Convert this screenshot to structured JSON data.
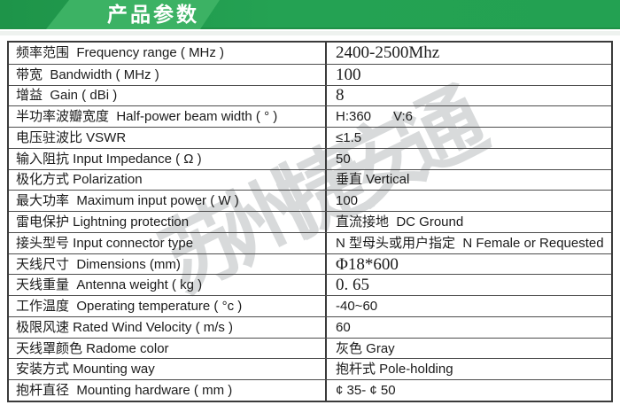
{
  "header": {
    "title": "产品参数"
  },
  "watermark": {
    "text": "苏州捷安通"
  },
  "colors": {
    "header_green": "#23a152",
    "header_green_dark": "#1e9449",
    "header_accent_green": "#3cb264",
    "table_border": "#3b3b3b",
    "watermark_gray": "#b9bdbf",
    "text": "#1b1b1b"
  },
  "table": {
    "rows": [
      {
        "label": "频率范围  Frequency range ( MHz )",
        "value": "2400-2500Mhz",
        "value_class": "serif"
      },
      {
        "label": "带宽  Bandwidth ( MHz )",
        "value": "100",
        "value_class": "serif"
      },
      {
        "label": "增益  Gain ( dBi )",
        "value": "8",
        "value_class": "serif"
      },
      {
        "label": "半功率波瓣宽度  Half-power beam width ( ° )",
        "value": "H:360      V:6",
        "value_class": ""
      },
      {
        "label": "电压驻波比 VSWR",
        "value": "≤1.5",
        "value_class": ""
      },
      {
        "label": "输入阻抗 Input Impedance ( Ω )",
        "value": "50",
        "value_class": ""
      },
      {
        "label": "极化方式 Polarization",
        "value": "垂直 Vertical",
        "value_class": ""
      },
      {
        "label": "最大功率  Maximum input power ( W )",
        "value": "100",
        "value_class": ""
      },
      {
        "label": "雷电保护 Lightning protection",
        "value": "直流接地  DC Ground",
        "value_class": ""
      },
      {
        "label": "接头型号 Input connector type",
        "value": "N 型母头或用户指定  N Female or Requested",
        "value_class": ""
      },
      {
        "label": "天线尺寸  Dimensions (mm)",
        "value": "Φ18*600",
        "value_class": "serif"
      },
      {
        "label": "天线重量  Antenna weight ( kg )",
        "value": "0. 65",
        "value_class": "serif"
      },
      {
        "label": "工作温度  Operating temperature ( °c )",
        "value": "-40~60",
        "value_class": ""
      },
      {
        "label": "极限风速 Rated Wind Velocity ( m/s )",
        "value": "60",
        "value_class": ""
      },
      {
        "label": "天线罩颜色 Radome color",
        "value": "灰色 Gray",
        "value_class": ""
      },
      {
        "label": "安装方式 Mounting way",
        "value": "抱杆式 Pole-holding",
        "value_class": ""
      },
      {
        "label": "抱杆直径  Mounting hardware ( mm )",
        "value": "¢ 35- ¢ 50",
        "value_class": ""
      }
    ]
  }
}
